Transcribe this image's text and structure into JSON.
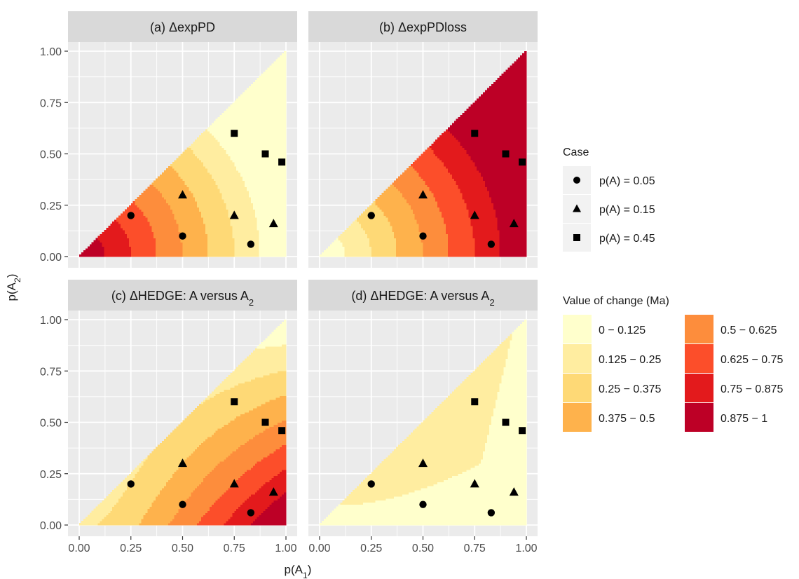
{
  "chart_data": {
    "type": "heatmap",
    "xlabel": "p(A₁)",
    "ylabel": "p(A₂)",
    "xlim": [
      0,
      1
    ],
    "ylim": [
      0,
      1
    ],
    "x_ticks": [
      "0.00",
      "0.25",
      "0.50",
      "0.75",
      "1.00"
    ],
    "y_ticks": [
      "0.00",
      "0.25",
      "0.50",
      "0.75",
      "1.00"
    ],
    "grid": true,
    "panels": [
      {
        "id": "a",
        "title": "(a) ΔexpPD",
        "fill_rule": "1 - sqrt(x^2 + y^2)"
      },
      {
        "id": "b",
        "title": "(b) ΔexpPDloss",
        "fill_rule": "sqrt(x^2 + y^2)"
      },
      {
        "id": "c",
        "title": "(c) ΔHEDGE: A versus A₂",
        "fill_rule": "x*(1-y)^0.5"
      },
      {
        "id": "d",
        "title": "(d) ΔHEDGE: A versus A₂",
        "fill_rule": "low, with 0.125-0.25 band along upper region"
      }
    ],
    "cases": {
      "title": "Case",
      "groups": [
        {
          "label": "p(A) = 0.05",
          "shape": "circle",
          "points": [
            [
              0.25,
              0.2
            ],
            [
              0.5,
              0.1
            ],
            [
              0.83,
              0.06
            ]
          ]
        },
        {
          "label": "p(A) = 0.15",
          "shape": "triangle",
          "points": [
            [
              0.5,
              0.3
            ],
            [
              0.75,
              0.2
            ],
            [
              0.94,
              0.16
            ]
          ]
        },
        {
          "label": "p(A) = 0.45",
          "shape": "square",
          "points": [
            [
              0.75,
              0.6
            ],
            [
              0.9,
              0.5
            ],
            [
              0.98,
              0.46
            ]
          ]
        }
      ]
    },
    "fill_legend": {
      "title": "Value of change (Ma)",
      "bins": [
        {
          "label": "0 − 0.125",
          "color": "#FFFFCC"
        },
        {
          "label": "0.125 − 0.25",
          "color": "#FFEDA0"
        },
        {
          "label": "0.25 − 0.375",
          "color": "#FED976"
        },
        {
          "label": "0.375 − 0.5",
          "color": "#FEB24C"
        },
        {
          "label": "0.5 − 0.625",
          "color": "#FD8D3C"
        },
        {
          "label": "0.625 − 0.75",
          "color": "#FC4E2A"
        },
        {
          "label": "0.75 − 0.875",
          "color": "#E31A1C"
        },
        {
          "label": "0.875 − 1",
          "color": "#BD0026"
        }
      ]
    },
    "colors": {
      "panel_bg": "#EBEBEB",
      "strip_bg": "#D9D9D9",
      "grid": "#FFFFFF",
      "tick": "#333333",
      "text": "#1A1A1A"
    }
  }
}
